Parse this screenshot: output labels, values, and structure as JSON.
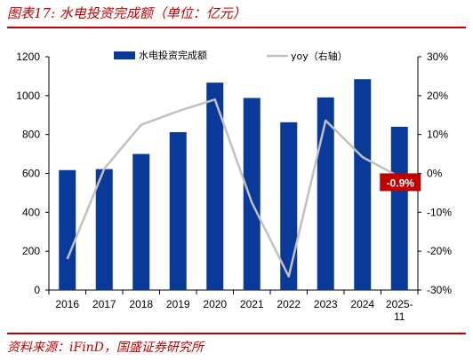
{
  "figure": {
    "title": "图表17:  水电投资完成额（单位：亿元）",
    "source": "资料来源：iFinD，国盛证券研究所"
  },
  "colors": {
    "bar": "#0a3a99",
    "line": "#c0c0c0",
    "accent": "#c00000",
    "callout_bg": "#c00000"
  },
  "chart_data": {
    "type": "bar",
    "title": "",
    "categories": [
      "2016",
      "2017",
      "2018",
      "2019",
      "2020",
      "2021",
      "2022",
      "2023",
      "2024",
      "2025-11"
    ],
    "series": [
      {
        "name": "水电投资完成额",
        "type": "bar",
        "axis": "left",
        "values": [
          617,
          622,
          700,
          812,
          1067,
          988,
          863,
          991,
          1085,
          840
        ]
      },
      {
        "name": "yoy（右轴）",
        "type": "line",
        "axis": "right",
        "values": [
          -22.0,
          1.2,
          12.5,
          16.0,
          19.0,
          -7.5,
          -26.5,
          13.6,
          4.2,
          -0.9
        ]
      }
    ],
    "yleft": {
      "ylim": [
        0,
        1200
      ],
      "ticks": [
        "0",
        "200",
        "400",
        "600",
        "800",
        "1000",
        "1200"
      ]
    },
    "yright": {
      "ylim": [
        -30,
        30
      ],
      "ticks": [
        "-30%",
        "-20%",
        "-10%",
        "0%",
        "10%",
        "20%",
        "30%"
      ]
    },
    "callout": {
      "text": "-0.9%"
    },
    "legend_position": "top",
    "grid": false
  }
}
